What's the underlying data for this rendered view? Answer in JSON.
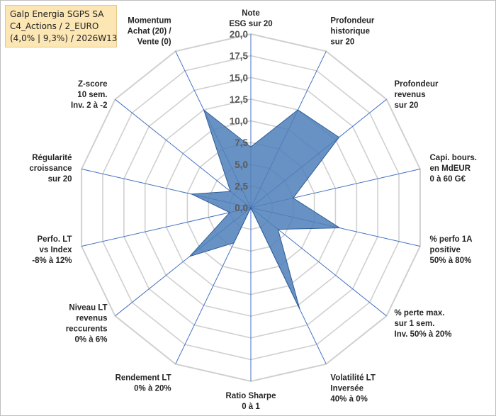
{
  "header": {
    "line1": "Galp Energia SGPS SA",
    "line2": "C4_Actions / 2_EURO",
    "line3": "(4,0% | 9,3%) / 2026W13"
  },
  "chart_data": {
    "type": "radar",
    "title": "Galp Energia SGPS SA",
    "rmin": 0,
    "rmax": 20,
    "ticks": [
      "0,0",
      "2,5",
      "5,0",
      "7,5",
      "10,0",
      "12,5",
      "15,0",
      "17,5",
      "20,0"
    ],
    "colors": {
      "fill": "#4f7fba",
      "line": "#2e5c96",
      "spoke": "#4472c4",
      "grid": "#d0d0d0"
    },
    "axes": [
      [
        "Note",
        "ESG sur 20"
      ],
      [
        "Profondeur",
        "historique",
        "sur 20"
      ],
      [
        "Profondeur",
        "revenus",
        "sur 20"
      ],
      [
        "Capi. bours.",
        "en MdEUR",
        "0 à 60 G€"
      ],
      [
        "% perfo 1A",
        "positive",
        "50% à 80%"
      ],
      [
        "% perte max.",
        "sur 1 sem.",
        "Inv. 50% à 20%"
      ],
      [
        "Volatilité LT",
        "Inversée",
        "40% à 0%"
      ],
      [
        "Ratio Sharpe",
        "0 à 1"
      ],
      [
        "Rendement LT",
        "0% à 20%"
      ],
      [
        "Niveau LT",
        "revenus",
        "reccurents",
        "0% à 6%"
      ],
      [
        "Perfo. LT",
        "vs Index",
        "-8% à 12%"
      ],
      [
        "Régularité",
        "croissance",
        "sur 20"
      ],
      [
        "Z-score",
        "10 sem.",
        "Inv. 2 à -2"
      ],
      [
        "Momentum",
        "Achat (20) /",
        "Vente (0)"
      ]
    ],
    "values": [
      7.0,
      12.5,
      13.0,
      5.0,
      10.5,
      4.0,
      13.0,
      0.0,
      4.5,
      9.0,
      2.5,
      7.0,
      3.0,
      12.5
    ]
  }
}
